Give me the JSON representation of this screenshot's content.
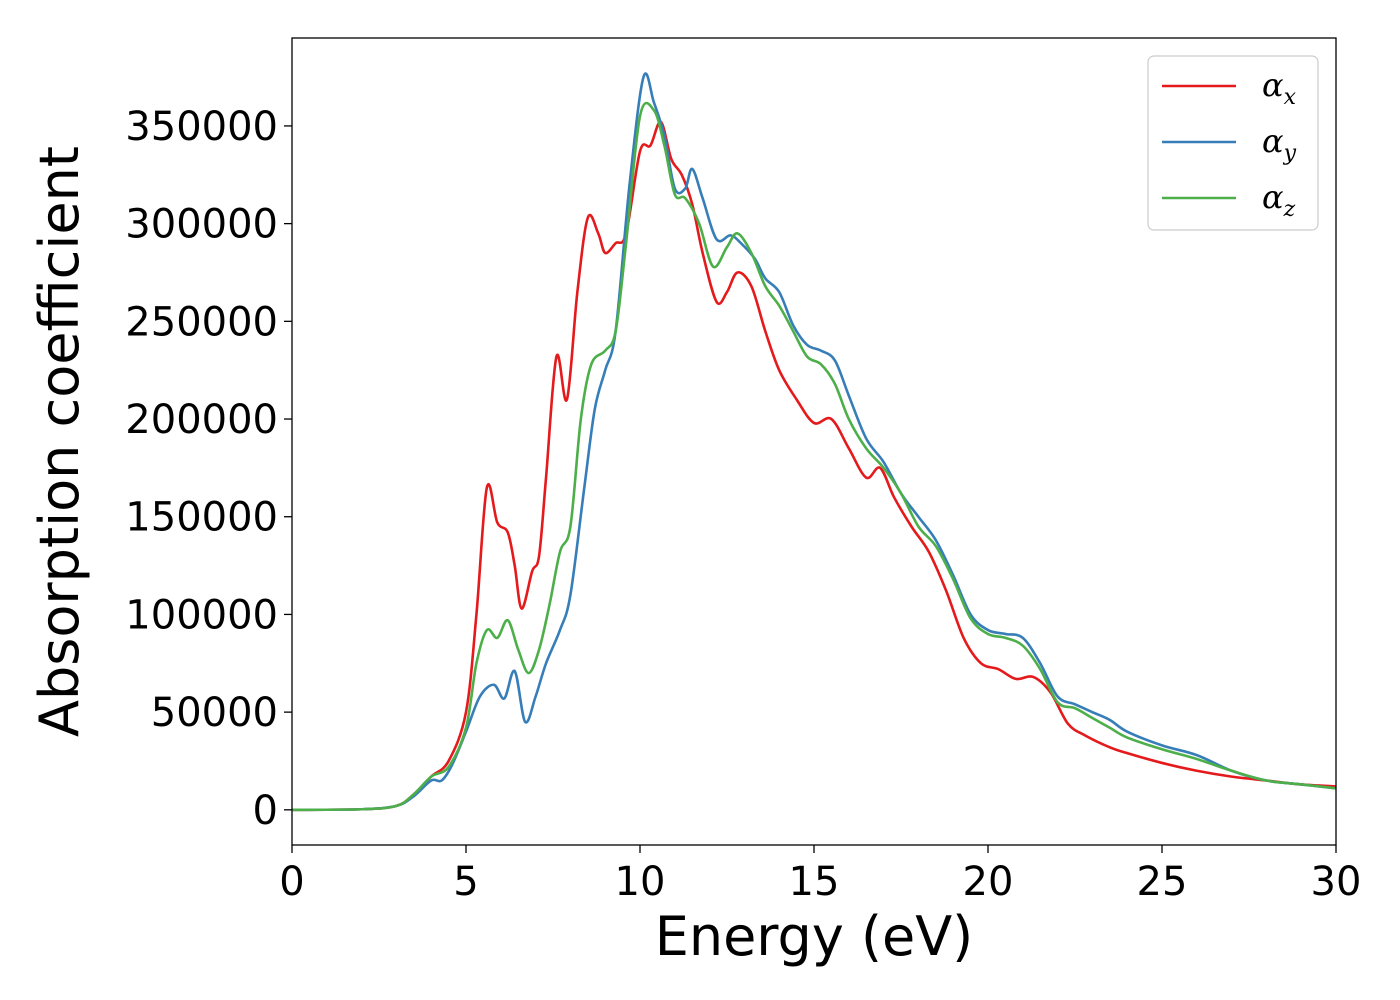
{
  "chart_data": {
    "type": "line",
    "xlabel": "Energy (eV)",
    "ylabel": "Absorption coefficient",
    "xlim": [
      0,
      30
    ],
    "ylim": [
      -18000,
      395000
    ],
    "xticks": [
      "0",
      "5",
      "10",
      "15",
      "20",
      "25",
      "30"
    ],
    "yticks": [
      "0",
      "50000",
      "100000",
      "150000",
      "200000",
      "250000",
      "300000",
      "350000"
    ],
    "xtick_values": [
      0,
      5,
      10,
      15,
      20,
      25,
      30
    ],
    "ytick_values": [
      0,
      50000,
      100000,
      150000,
      200000,
      250000,
      300000,
      350000
    ],
    "grid": false,
    "legend_position": "top-right",
    "series": [
      {
        "name": "α_x",
        "name_base": "α",
        "name_sub": "x",
        "color": "#e41a1c",
        "points": [
          [
            0,
            0
          ],
          [
            2,
            300
          ],
          [
            3,
            2000
          ],
          [
            3.5,
            8000
          ],
          [
            4.0,
            17000
          ],
          [
            4.5,
            25000
          ],
          [
            5.0,
            50000
          ],
          [
            5.3,
            100000
          ],
          [
            5.6,
            165000
          ],
          [
            5.9,
            147000
          ],
          [
            6.2,
            142000
          ],
          [
            6.4,
            125000
          ],
          [
            6.6,
            103000
          ],
          [
            6.9,
            122000
          ],
          [
            7.1,
            130000
          ],
          [
            7.3,
            170000
          ],
          [
            7.6,
            232000
          ],
          [
            7.9,
            210000
          ],
          [
            8.2,
            265000
          ],
          [
            8.5,
            303000
          ],
          [
            8.8,
            295000
          ],
          [
            9.0,
            285000
          ],
          [
            9.3,
            290000
          ],
          [
            9.6,
            295000
          ],
          [
            10.0,
            337000
          ],
          [
            10.3,
            340000
          ],
          [
            10.6,
            352000
          ],
          [
            10.9,
            333000
          ],
          [
            11.2,
            325000
          ],
          [
            11.5,
            310000
          ],
          [
            11.8,
            285000
          ],
          [
            12.2,
            260000
          ],
          [
            12.5,
            265000
          ],
          [
            12.8,
            275000
          ],
          [
            13.2,
            268000
          ],
          [
            13.6,
            245000
          ],
          [
            14.0,
            225000
          ],
          [
            14.5,
            210000
          ],
          [
            15.0,
            198000
          ],
          [
            15.5,
            200000
          ],
          [
            16.0,
            185000
          ],
          [
            16.5,
            170000
          ],
          [
            16.9,
            175000
          ],
          [
            17.3,
            160000
          ],
          [
            17.8,
            145000
          ],
          [
            18.3,
            132000
          ],
          [
            18.8,
            112000
          ],
          [
            19.3,
            88000
          ],
          [
            19.8,
            75000
          ],
          [
            20.3,
            72000
          ],
          [
            20.8,
            67000
          ],
          [
            21.3,
            68000
          ],
          [
            21.8,
            60000
          ],
          [
            22.3,
            44000
          ],
          [
            22.8,
            38000
          ],
          [
            23.5,
            32000
          ],
          [
            24.0,
            29000
          ],
          [
            25.0,
            24000
          ],
          [
            26.0,
            20000
          ],
          [
            27.0,
            17000
          ],
          [
            28.0,
            15000
          ],
          [
            29.0,
            13000
          ],
          [
            30.0,
            12000
          ]
        ]
      },
      {
        "name": "α_y",
        "name_base": "α",
        "name_sub": "y",
        "color": "#377eb8",
        "points": [
          [
            0,
            0
          ],
          [
            2,
            300
          ],
          [
            3,
            2000
          ],
          [
            3.5,
            7000
          ],
          [
            4.0,
            15000
          ],
          [
            4.3,
            15000
          ],
          [
            4.6,
            23000
          ],
          [
            5.0,
            40000
          ],
          [
            5.4,
            58000
          ],
          [
            5.8,
            64000
          ],
          [
            6.1,
            57000
          ],
          [
            6.4,
            71000
          ],
          [
            6.7,
            45000
          ],
          [
            7.0,
            58000
          ],
          [
            7.3,
            75000
          ],
          [
            7.7,
            92000
          ],
          [
            8.0,
            110000
          ],
          [
            8.4,
            165000
          ],
          [
            8.7,
            205000
          ],
          [
            9.0,
            225000
          ],
          [
            9.3,
            245000
          ],
          [
            9.7,
            320000
          ],
          [
            10.1,
            375000
          ],
          [
            10.4,
            362000
          ],
          [
            10.7,
            345000
          ],
          [
            11.0,
            318000
          ],
          [
            11.3,
            318000
          ],
          [
            11.5,
            328000
          ],
          [
            11.8,
            313000
          ],
          [
            12.2,
            292000
          ],
          [
            12.6,
            294000
          ],
          [
            12.9,
            290000
          ],
          [
            13.3,
            282000
          ],
          [
            13.6,
            272000
          ],
          [
            14.0,
            265000
          ],
          [
            14.4,
            248000
          ],
          [
            14.8,
            238000
          ],
          [
            15.2,
            235000
          ],
          [
            15.6,
            230000
          ],
          [
            16.0,
            212000
          ],
          [
            16.5,
            190000
          ],
          [
            17.0,
            178000
          ],
          [
            17.5,
            162000
          ],
          [
            18.0,
            150000
          ],
          [
            18.5,
            138000
          ],
          [
            19.0,
            120000
          ],
          [
            19.5,
            100000
          ],
          [
            20.0,
            92000
          ],
          [
            20.5,
            90000
          ],
          [
            21.0,
            88000
          ],
          [
            21.5,
            75000
          ],
          [
            22.0,
            58000
          ],
          [
            22.5,
            54000
          ],
          [
            23.0,
            50000
          ],
          [
            23.5,
            46000
          ],
          [
            24.0,
            40000
          ],
          [
            25.0,
            33000
          ],
          [
            26.0,
            28000
          ],
          [
            27.0,
            20000
          ],
          [
            28.0,
            15000
          ],
          [
            29.0,
            13000
          ],
          [
            30.0,
            11000
          ]
        ]
      },
      {
        "name": "α_z",
        "name_base": "α",
        "name_sub": "z",
        "color": "#4daf4a",
        "points": [
          [
            0,
            0
          ],
          [
            2,
            300
          ],
          [
            3,
            2000
          ],
          [
            3.5,
            8000
          ],
          [
            4.0,
            17000
          ],
          [
            4.5,
            22000
          ],
          [
            5.0,
            42000
          ],
          [
            5.3,
            75000
          ],
          [
            5.6,
            92000
          ],
          [
            5.9,
            88000
          ],
          [
            6.2,
            97000
          ],
          [
            6.5,
            82000
          ],
          [
            6.8,
            70000
          ],
          [
            7.1,
            82000
          ],
          [
            7.4,
            105000
          ],
          [
            7.7,
            132000
          ],
          [
            8.0,
            145000
          ],
          [
            8.3,
            200000
          ],
          [
            8.6,
            228000
          ],
          [
            9.0,
            235000
          ],
          [
            9.3,
            245000
          ],
          [
            9.6,
            290000
          ],
          [
            10.0,
            355000
          ],
          [
            10.4,
            358000
          ],
          [
            10.7,
            340000
          ],
          [
            11.0,
            315000
          ],
          [
            11.3,
            313000
          ],
          [
            11.7,
            300000
          ],
          [
            12.1,
            278000
          ],
          [
            12.5,
            288000
          ],
          [
            12.8,
            295000
          ],
          [
            13.2,
            285000
          ],
          [
            13.6,
            268000
          ],
          [
            14.0,
            258000
          ],
          [
            14.4,
            245000
          ],
          [
            14.8,
            232000
          ],
          [
            15.2,
            228000
          ],
          [
            15.6,
            218000
          ],
          [
            16.0,
            200000
          ],
          [
            16.5,
            185000
          ],
          [
            17.0,
            175000
          ],
          [
            17.5,
            162000
          ],
          [
            18.0,
            145000
          ],
          [
            18.5,
            135000
          ],
          [
            19.0,
            118000
          ],
          [
            19.5,
            98000
          ],
          [
            20.0,
            90000
          ],
          [
            20.5,
            88000
          ],
          [
            21.0,
            84000
          ],
          [
            21.5,
            72000
          ],
          [
            22.0,
            55000
          ],
          [
            22.5,
            52000
          ],
          [
            23.0,
            47000
          ],
          [
            23.5,
            42000
          ],
          [
            24.0,
            37000
          ],
          [
            25.0,
            31000
          ],
          [
            26.0,
            26000
          ],
          [
            27.0,
            20000
          ],
          [
            28.0,
            15000
          ],
          [
            29.0,
            13000
          ],
          [
            30.0,
            11000
          ]
        ]
      }
    ]
  }
}
